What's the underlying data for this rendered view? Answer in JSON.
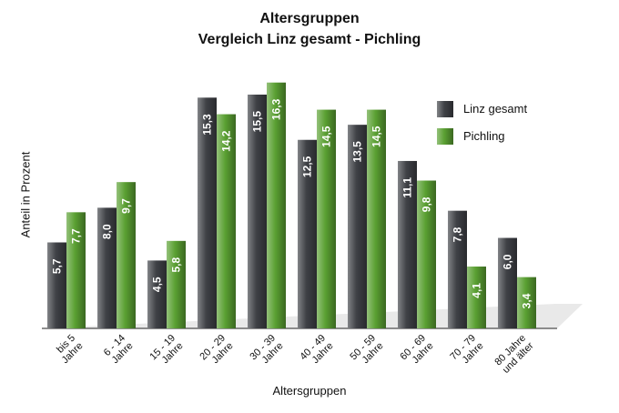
{
  "chart_data": {
    "type": "bar",
    "title": "Altersgruppen",
    "subtitle": "Vergleich Linz gesamt - Pichling",
    "xlabel": "Altersgruppen",
    "ylabel": "Anteil in Prozent",
    "ylim": [
      0,
      17
    ],
    "grid": false,
    "legend_position": "top-right",
    "categories": [
      [
        "bis 5",
        "Jahre"
      ],
      [
        "6 - 14",
        "Jahre"
      ],
      [
        "15 - 19",
        "Jahre"
      ],
      [
        "20 - 29",
        "Jahre"
      ],
      [
        "30 - 39",
        "Jahre"
      ],
      [
        "40 - 49",
        "Jahre"
      ],
      [
        "50 - 59",
        "Jahre"
      ],
      [
        "60 - 69",
        "Jahre"
      ],
      [
        "70 - 79",
        "Jahre"
      ],
      [
        "80 Jahre",
        "und älter"
      ]
    ],
    "series": [
      {
        "name": "Linz gesamt",
        "color": "#3f4146",
        "values": [
          5.7,
          8.0,
          4.5,
          15.3,
          15.5,
          12.5,
          13.5,
          11.1,
          7.8,
          6.0
        ],
        "labels": [
          "5,7",
          "8,0",
          "4,5",
          "15,3",
          "15,5",
          "12,5",
          "13,5",
          "11,1",
          "7,8",
          "6,0"
        ]
      },
      {
        "name": "Pichling",
        "color": "#5aa032",
        "values": [
          7.7,
          9.7,
          5.8,
          14.2,
          16.3,
          14.5,
          14.5,
          9.8,
          4.1,
          3.4
        ],
        "labels": [
          "7,7",
          "9,7",
          "5,8",
          "14,2",
          "16,3",
          "14,5",
          "14,5",
          "9,8",
          "4,1",
          "3,4"
        ]
      }
    ]
  }
}
